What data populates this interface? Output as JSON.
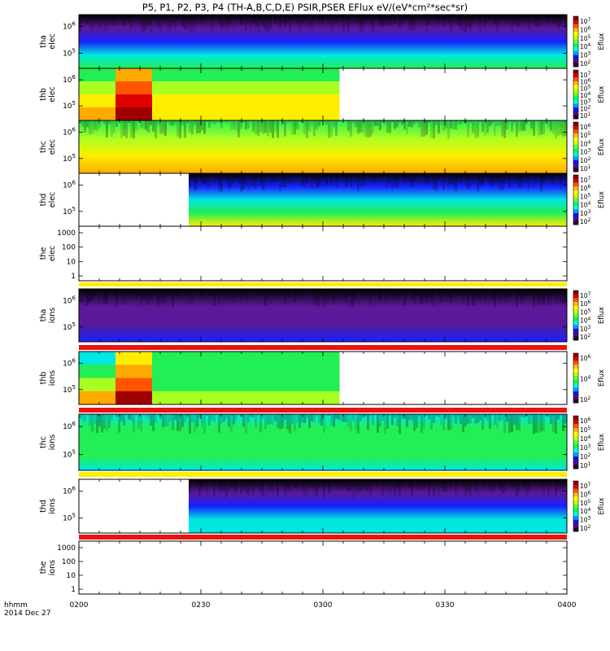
{
  "chart_data": {
    "type": "heatmap",
    "title": "P5, P1, P2, P3, P4 (TH-A,B,C,D,E) PSIR,PSER EFlux eV/(eV*cm²*sec*sr)",
    "x_axis": {
      "label_line1": "hhmm",
      "label_line2": "2014 Dec 27",
      "range": [
        "0200",
        "0400"
      ],
      "ticks": [
        "0200",
        "0230",
        "0300",
        "0330",
        "0400"
      ]
    },
    "colorbar_label": "Eflux",
    "panels": [
      {
        "name": "tha elec",
        "ylabel": [
          "tha",
          "elec"
        ],
        "yscale": "log",
        "yticks": [
          {
            "exp": "5"
          },
          {
            "exp": "6"
          }
        ],
        "colorbar_ticks": [
          {
            "exp": "7"
          },
          {
            "exp": "6"
          },
          {
            "exp": "5"
          },
          {
            "exp": "4"
          },
          {
            "exp": "3"
          },
          {
            "exp": "2"
          }
        ],
        "data_end": "0400",
        "rows": [
          [
            "black",
            "purple",
            "blue",
            "cyan",
            "green"
          ]
        ]
      },
      {
        "name": "thb elec",
        "ylabel": [
          "thb",
          "elec"
        ],
        "yscale": "log",
        "yticks": [
          {
            "exp": "5"
          },
          {
            "exp": "6"
          }
        ],
        "colorbar_ticks": [
          {
            "exp": "7"
          },
          {
            "exp": "6"
          },
          {
            "exp": "5"
          },
          {
            "exp": "4"
          },
          {
            "exp": "3"
          },
          {
            "exp": "2"
          },
          {
            "exp": "1"
          }
        ],
        "data_end": "0304",
        "blocks": [
          {
            "start": "0200",
            "end": "0209",
            "colors": [
              "green",
              "yellowgreen",
              "yellow",
              "orange"
            ]
          },
          {
            "start": "0209",
            "end": "0218",
            "colors": [
              "orange",
              "orange-red",
              "red",
              "darkred"
            ]
          },
          {
            "start": "0218",
            "end": "0304",
            "colors": [
              "green",
              "yellowgreen",
              "yellow",
              "yellow"
            ]
          }
        ]
      },
      {
        "name": "thc elec",
        "ylabel": [
          "thc",
          "elec"
        ],
        "yscale": "log",
        "yticks": [
          {
            "exp": "5"
          },
          {
            "exp": "6"
          }
        ],
        "colorbar_ticks": [
          {
            "exp": "6"
          },
          {
            "exp": "5"
          },
          {
            "exp": "4"
          },
          {
            "exp": "3"
          },
          {
            "exp": "2"
          },
          {
            "exp": "1"
          }
        ],
        "data_end": "0400",
        "rows": [
          [
            "green",
            "yellowgreen",
            "yellow",
            "orange"
          ]
        ]
      },
      {
        "name": "thd elec",
        "ylabel": [
          "thd",
          "elec"
        ],
        "yscale": "log",
        "yticks": [
          {
            "exp": "5"
          },
          {
            "exp": "6"
          }
        ],
        "colorbar_ticks": [
          {
            "exp": "7"
          },
          {
            "exp": "6"
          },
          {
            "exp": "5"
          },
          {
            "exp": "4"
          },
          {
            "exp": "3"
          },
          {
            "exp": "2"
          }
        ],
        "data_start": "0227",
        "rows": [
          [
            "black",
            "blue",
            "cyan",
            "green",
            "yellow"
          ]
        ]
      },
      {
        "name": "the elec",
        "ylabel": [
          "the",
          "elec"
        ],
        "yscale": "log",
        "yticks": [
          {
            "text": "1000"
          },
          {
            "text": "100"
          },
          {
            "text": "10"
          },
          {
            "text": "1"
          }
        ],
        "empty": true
      },
      {
        "name": "tha ions",
        "ylabel": [
          "tha",
          "ions"
        ],
        "yscale": "log",
        "yticks": [
          {
            "exp": "5"
          },
          {
            "exp": "6"
          }
        ],
        "colorbar_ticks": [
          {
            "exp": "7"
          },
          {
            "exp": "6"
          },
          {
            "exp": "5"
          },
          {
            "exp": "4"
          },
          {
            "exp": "3"
          },
          {
            "exp": "2"
          }
        ],
        "data_end": "0400",
        "rows": [
          [
            "black",
            "purple",
            "purple",
            "blue"
          ]
        ]
      },
      {
        "name": "thb ions",
        "ylabel": [
          "thb",
          "ions"
        ],
        "yscale": "log",
        "yticks": [
          {
            "exp": "5"
          },
          {
            "exp": "6"
          }
        ],
        "colorbar_ticks": [
          {
            "exp": "6"
          },
          {
            "exp": "4"
          },
          {
            "exp": "2"
          }
        ],
        "data_end": "0304",
        "blocks": [
          {
            "start": "0200",
            "end": "0209",
            "colors": [
              "cyan",
              "green",
              "yellowgreen",
              "orange"
            ]
          },
          {
            "start": "0209",
            "end": "0218",
            "colors": [
              "yellow",
              "orange",
              "orange-red",
              "darkred"
            ]
          },
          {
            "start": "0218",
            "end": "0304",
            "colors": [
              "green",
              "green",
              "green",
              "yellowgreen"
            ]
          }
        ]
      },
      {
        "name": "thc ions",
        "ylabel": [
          "thc",
          "ions"
        ],
        "yscale": "log",
        "yticks": [
          {
            "exp": "5"
          },
          {
            "exp": "6"
          }
        ],
        "colorbar_ticks": [
          {
            "exp": "6"
          },
          {
            "exp": "5"
          },
          {
            "exp": "4"
          },
          {
            "exp": "3"
          },
          {
            "exp": "2"
          },
          {
            "exp": "1"
          }
        ],
        "data_end": "0400",
        "rows": [
          [
            "cyan",
            "green",
            "green",
            "green",
            "cyan"
          ]
        ]
      },
      {
        "name": "thd ions",
        "ylabel": [
          "thd",
          "ions"
        ],
        "yscale": "log",
        "yticks": [
          {
            "exp": "5"
          },
          {
            "exp": "6"
          }
        ],
        "colorbar_ticks": [
          {
            "exp": "7"
          },
          {
            "exp": "6"
          },
          {
            "exp": "5"
          },
          {
            "exp": "4"
          },
          {
            "exp": "3"
          },
          {
            "exp": "2"
          }
        ],
        "data_start": "0227",
        "rows": [
          [
            "black",
            "purple",
            "blue",
            "cyan",
            "cyan"
          ]
        ]
      },
      {
        "name": "the ions",
        "ylabel": [
          "the",
          "ions"
        ],
        "yscale": "log",
        "yticks": [
          {
            "text": "1000"
          },
          {
            "text": "100"
          },
          {
            "text": "10"
          },
          {
            "text": "1"
          }
        ],
        "empty": true
      }
    ],
    "status_bars": [
      {
        "after_panel": "the elec",
        "color": "#ffee00"
      },
      {
        "after_panel": "tha ions",
        "color": "#ee1111"
      },
      {
        "after_panel": "thb ions",
        "color": "#ee1111"
      },
      {
        "after_panel": "thc ions",
        "color": "#ffee00"
      },
      {
        "after_panel": "thd ions",
        "color": "#ee1111"
      }
    ],
    "colormap": [
      "#2a003a",
      "#4b0f8c",
      "#1010ff",
      "#00a0ff",
      "#00ffe0",
      "#00ff60",
      "#66ff33",
      "#ccff00",
      "#ffff00",
      "#ffbb00",
      "#ff5500",
      "#dd0000",
      "#8a0000"
    ]
  }
}
